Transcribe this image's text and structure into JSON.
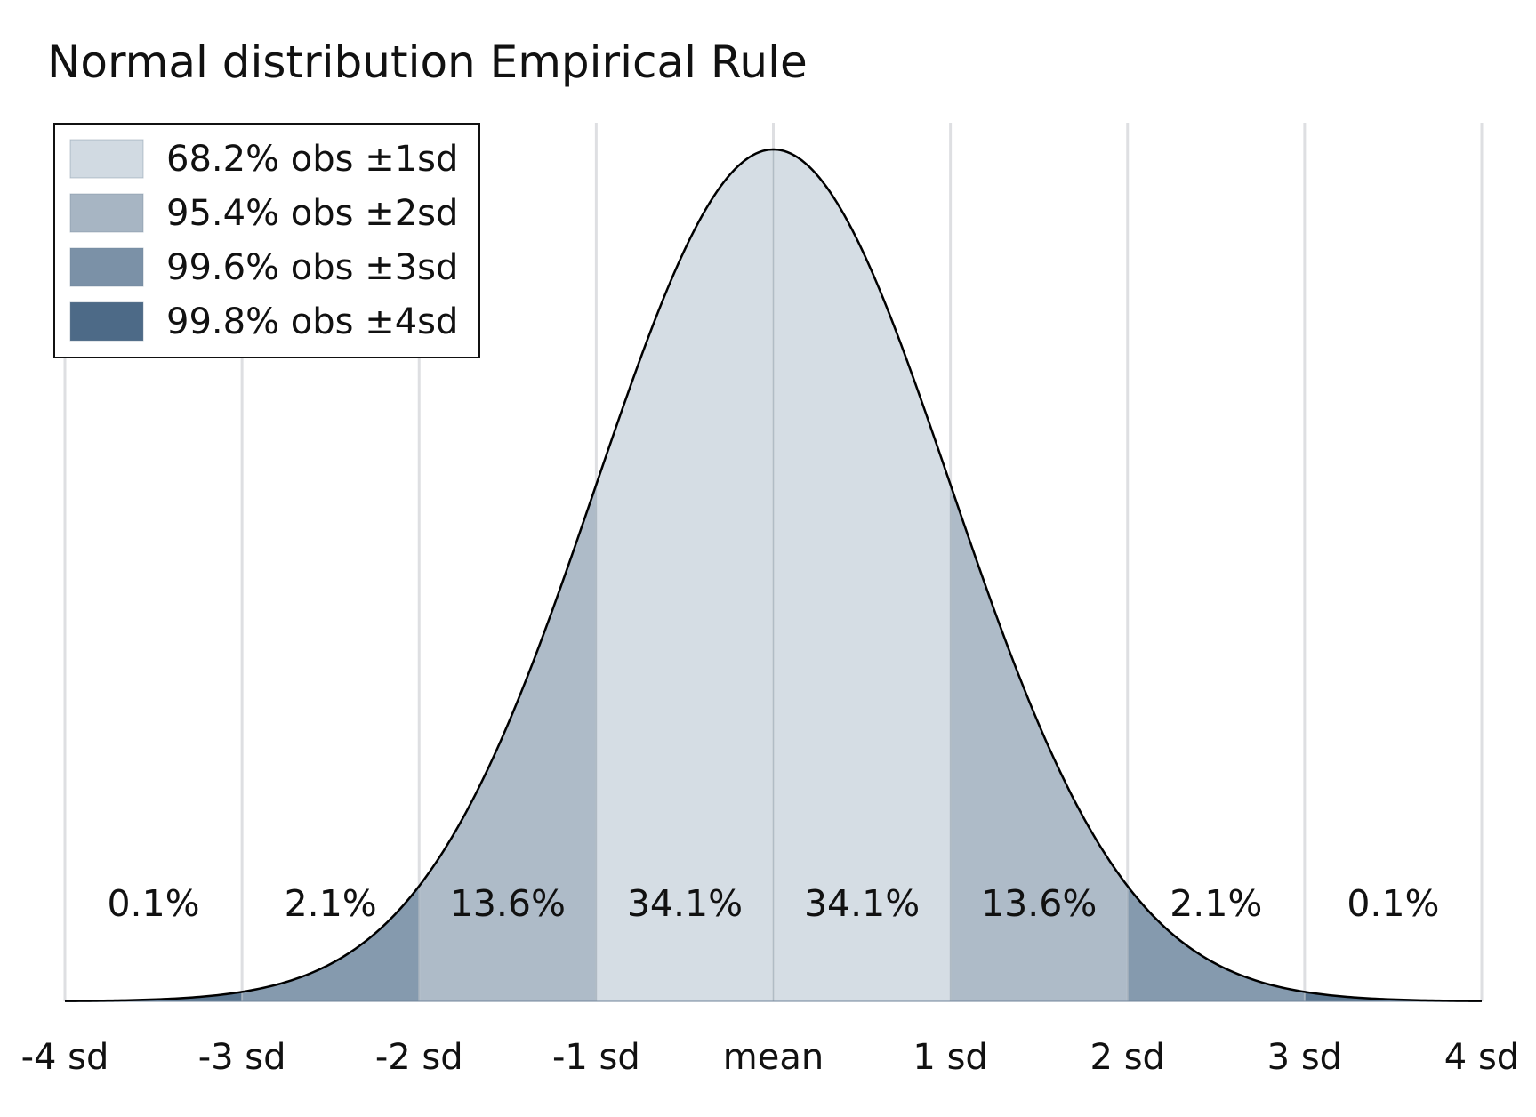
{
  "chart_data": {
    "type": "area",
    "title": "Normal distribution Empirical Rule",
    "xlabel": "",
    "ylabel": "",
    "xlim": [
      -4,
      4
    ],
    "x_ticks": [
      {
        "value": -4,
        "label": "-4 sd"
      },
      {
        "value": -3,
        "label": "-3 sd"
      },
      {
        "value": -2,
        "label": "-2 sd"
      },
      {
        "value": -1,
        "label": "-1 sd"
      },
      {
        "value": 0,
        "label": "mean"
      },
      {
        "value": 1,
        "label": "1 sd"
      },
      {
        "value": 2,
        "label": "2 sd"
      },
      {
        "value": 3,
        "label": "3 sd"
      },
      {
        "value": 4,
        "label": "4 sd"
      }
    ],
    "grid": "vertical",
    "curve": "standard normal density",
    "bands": [
      {
        "from": -4,
        "to": -3,
        "label": "0.1%",
        "level": 4
      },
      {
        "from": -3,
        "to": -2,
        "label": "2.1%",
        "level": 3
      },
      {
        "from": -2,
        "to": -1,
        "label": "13.6%",
        "level": 2
      },
      {
        "from": -1,
        "to": 0,
        "label": "34.1%",
        "level": 1
      },
      {
        "from": 0,
        "to": 1,
        "label": "34.1%",
        "level": 1
      },
      {
        "from": 1,
        "to": 2,
        "label": "13.6%",
        "level": 2
      },
      {
        "from": 2,
        "to": 3,
        "label": "2.1%",
        "level": 3
      },
      {
        "from": 3,
        "to": 4,
        "label": "0.1%",
        "level": 4
      }
    ],
    "legend": {
      "placement": "top-left",
      "entries": [
        {
          "level": 1,
          "label": "68.2% obs ±1sd",
          "color": "#d1dae2"
        },
        {
          "level": 2,
          "label": "95.4% obs ±2sd",
          "color": "#a7b5c3"
        },
        {
          "level": 3,
          "label": "99.6% obs ±3sd",
          "color": "#7b91a7"
        },
        {
          "level": 4,
          "label": "99.8% obs ±4sd",
          "color": "#4d6a87"
        }
      ]
    },
    "colors": {
      "grid": "#dedfe2",
      "curve": "#000000",
      "band_edge": "#6f8499"
    }
  }
}
